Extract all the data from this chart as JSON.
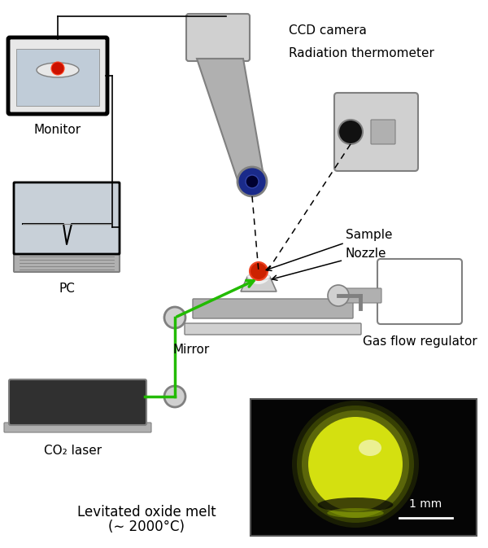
{
  "bg_color": "#ffffff",
  "labels": {
    "ccd_camera": "CCD camera",
    "rad_therm": "Radiation thermometer",
    "monitor": "Monitor",
    "pc": "PC",
    "co2_laser": "CO₂ laser",
    "mirror": "Mirror",
    "sample": "Sample",
    "nozzle": "Nozzle",
    "gas_flow": "Gas flow regulator",
    "melt_line1": "Levitated oxide melt",
    "melt_line2": "(∼ 2000°C)",
    "scale": "1 mm"
  },
  "colors": {
    "gray_light": "#d0d0d0",
    "gray_med": "#b0b0b0",
    "gray_dark": "#808080",
    "gray_very_dark": "#303030",
    "black": "#000000",
    "white": "#ffffff",
    "green": "#22bb00",
    "red": "#cc2200",
    "blue_dark": "#1a2a8a",
    "monitor_bg": "#e8e8e8",
    "monitor_screen": "#c0ccd8",
    "pc_screen": "#c8d0d8",
    "photo_bg": "#080808"
  }
}
